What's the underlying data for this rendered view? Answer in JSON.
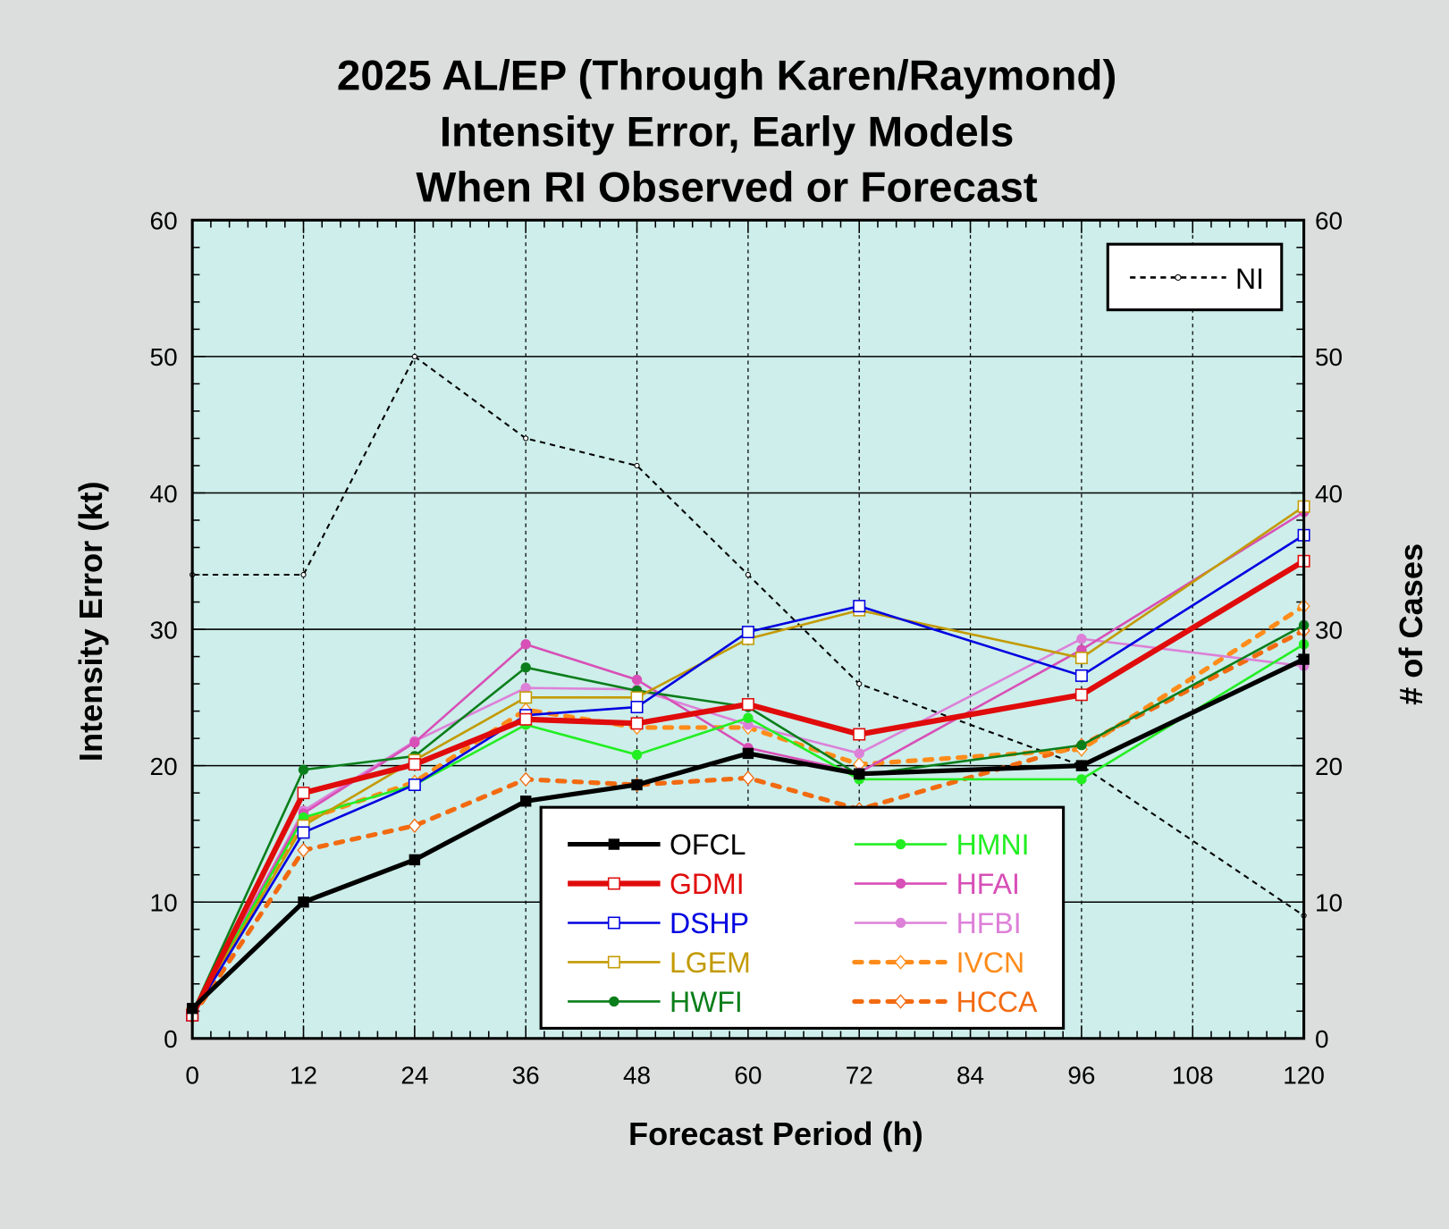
{
  "chart_data": {
    "type": "line",
    "title": [
      "2025 AL/EP (Through Karen/Raymond)",
      "Intensity Error, Early Models",
      "When RI Observed or Forecast"
    ],
    "xlabel": "Forecast Period (h)",
    "ylabel": "Intensity Error (kt)",
    "y2label": "# of Cases",
    "xlim": [
      0,
      120
    ],
    "ylim": [
      0,
      60
    ],
    "y2lim": [
      0,
      60
    ],
    "xticks": [
      "0",
      "12",
      "24",
      "36",
      "48",
      "60",
      "72",
      "84",
      "96",
      "108",
      "120"
    ],
    "yticks": [
      "0",
      "10",
      "20",
      "30",
      "40",
      "50",
      "60"
    ],
    "grid": true,
    "legend_position": "bottom-center",
    "x": [
      0,
      12,
      24,
      36,
      48,
      60,
      72,
      96,
      120
    ],
    "series": [
      {
        "name": "OFCL",
        "color": "#000000",
        "width": 5,
        "marker": "square-filled",
        "dash": "",
        "values": [
          2.2,
          10.0,
          13.1,
          17.4,
          18.6,
          20.9,
          19.4,
          20.0,
          27.8
        ]
      },
      {
        "name": "GDMI",
        "color": "#e00b0b",
        "width": 6,
        "marker": "square-open",
        "dash": "",
        "values": [
          1.7,
          18.0,
          20.1,
          23.4,
          23.1,
          24.5,
          22.3,
          25.2,
          35.0
        ]
      },
      {
        "name": "DSHP",
        "color": "#0000e0",
        "width": 2.5,
        "marker": "square-open",
        "dash": "",
        "values": [
          1.7,
          15.1,
          18.6,
          23.7,
          24.3,
          29.8,
          31.7,
          26.6,
          36.9
        ]
      },
      {
        "name": "LGEM",
        "color": "#c39a00",
        "width": 2.5,
        "marker": "square-open",
        "dash": "",
        "values": [
          1.8,
          15.6,
          20.4,
          25.0,
          25.0,
          29.3,
          31.4,
          27.9,
          39.0
        ]
      },
      {
        "name": "HWFI",
        "color": "#0a7e1a",
        "width": 2.5,
        "marker": "circle-filled",
        "dash": "",
        "values": [
          1.9,
          19.7,
          20.7,
          27.2,
          25.5,
          24.3,
          19.3,
          21.5,
          30.3
        ]
      },
      {
        "name": "HMNI",
        "color": "#22ee22",
        "width": 2.5,
        "marker": "circle-filled",
        "dash": "",
        "values": [
          1.8,
          16.2,
          18.6,
          23.0,
          20.8,
          23.5,
          19.0,
          19.0,
          28.9
        ]
      },
      {
        "name": "HFAI",
        "color": "#d84fb7",
        "width": 2.5,
        "marker": "circle-filled",
        "dash": "",
        "values": [
          1.8,
          16.5,
          21.7,
          28.9,
          26.3,
          21.3,
          19.5,
          28.5,
          38.6
        ]
      },
      {
        "name": "HFBI",
        "color": "#dd80d8",
        "width": 2.5,
        "marker": "circle-filled",
        "dash": "",
        "values": [
          1.8,
          16.7,
          21.8,
          25.7,
          25.6,
          23.0,
          20.9,
          29.3,
          27.3
        ]
      },
      {
        "name": "IVCN",
        "color": "#ff8c1a",
        "width": 5,
        "marker": "diamond-open",
        "dash": "8 10",
        "values": [
          1.6,
          16.0,
          18.8,
          24.1,
          22.8,
          22.8,
          20.1,
          21.2,
          31.7
        ]
      },
      {
        "name": "HCCA",
        "color": "#f26a10",
        "width": 5,
        "marker": "diamond-open",
        "dash": "8 10",
        "values": [
          1.6,
          13.8,
          15.6,
          19.0,
          18.6,
          19.1,
          16.8,
          21.5,
          29.9
        ]
      }
    ],
    "cases": {
      "name": "NI",
      "color": "#000000",
      "values": [
        34,
        34,
        50,
        44,
        42,
        34,
        26,
        20,
        9
      ]
    }
  }
}
